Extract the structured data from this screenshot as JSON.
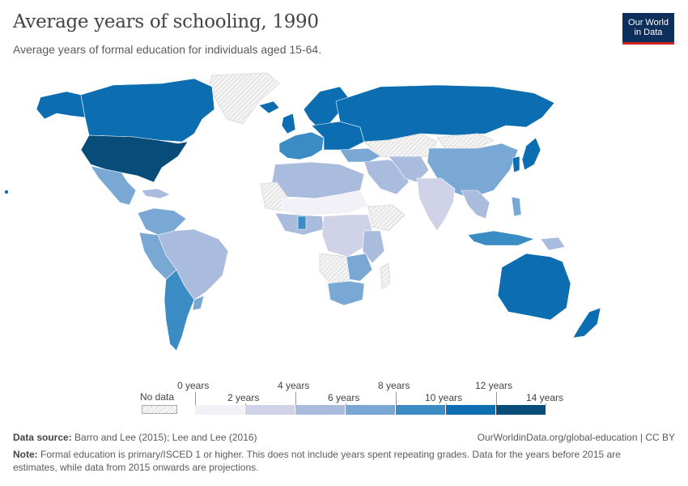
{
  "header": {
    "title": "Average years of schooling, 1990",
    "subtitle": "Average years of formal education for individuals aged 15-64.",
    "logo_line1": "Our World",
    "logo_line2": "in Data"
  },
  "colors": {
    "no_data": "#e8e8e8",
    "ocean": "#ffffff",
    "border": "#ffffff",
    "scale": [
      "#f2f1f8",
      "#d0d3e8",
      "#aabcdd",
      "#78a8d3",
      "#3b8cc4",
      "#0c6eb0",
      "#084c79"
    ]
  },
  "legend": {
    "no_data": "No data",
    "top_labels": [
      "0 years",
      "4 years",
      "8 years",
      "12 years"
    ],
    "bottom_labels": [
      "2 years",
      "6 years",
      "10 years",
      "14 years"
    ]
  },
  "footer": {
    "source_label": "Data source:",
    "source_text": "Barro and Lee (2015); Lee and Lee (2016)",
    "url": "OurWorldinData.org/global-education | CC BY",
    "note_label": "Note:",
    "note_line1": "Formal education is primary/ISCED 1 or higher. This does not include years spent repeating grades. Data for the years before 2015 are",
    "note_line2": "estimates, while data from 2015 onwards are projections."
  }
}
